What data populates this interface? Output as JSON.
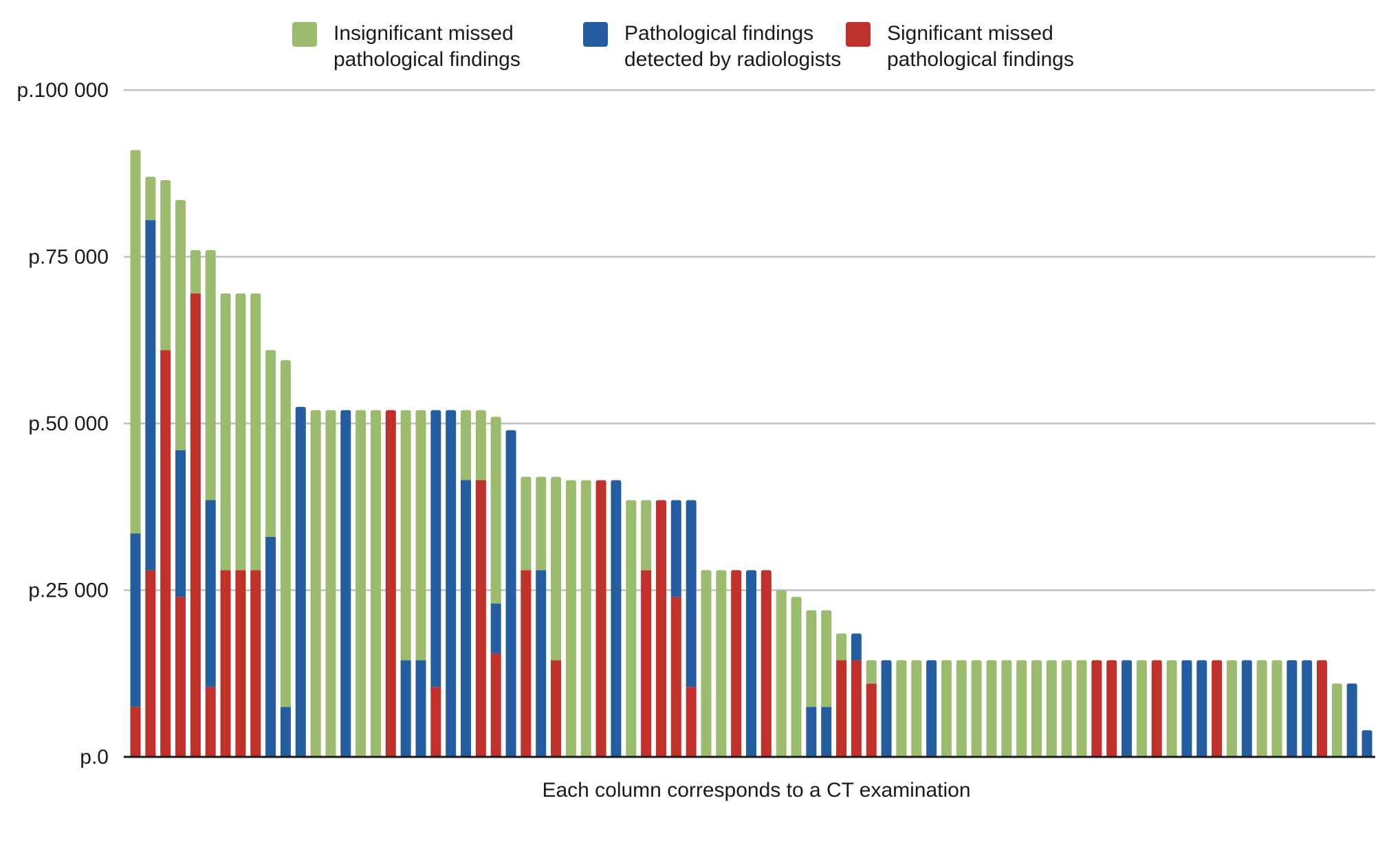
{
  "chart_data": {
    "type": "bar",
    "stacked": true,
    "xlabel": "Each column corresponds to a CT examination",
    "ylabel": "",
    "ylim": [
      0,
      100000
    ],
    "y_ticks": [
      0,
      25000,
      50000,
      75000,
      100000
    ],
    "y_tick_labels": [
      "p.0",
      "p.25 000",
      "p.50 000",
      "p.75 000",
      "p.100 000"
    ],
    "grid": true,
    "legend_position": "top",
    "series": [
      {
        "name": "Insignificant missed pathological findings",
        "name_lines": [
          "Insignificant missed",
          "pathological findings"
        ],
        "color": "#9bbb6f"
      },
      {
        "name": "Pathological findings detected by radiologists",
        "name_lines": [
          "Pathological findings",
          "detected by radiologists"
        ],
        "color": "#255ea0"
      },
      {
        "name": "Significant missed pathological findings",
        "name_lines": [
          "Significant missed",
          "pathological findings"
        ],
        "color": "#c0312b"
      }
    ],
    "color_codes": {
      "g": "#9bbb6f",
      "b": "#255ea0",
      "r": "#c0312b"
    },
    "columns": [
      [
        [
          "r",
          7500
        ],
        [
          "b",
          26000
        ],
        [
          "g",
          57500
        ]
      ],
      [
        [
          "r",
          28000
        ],
        [
          "b",
          52500
        ],
        [
          "g",
          6500
        ]
      ],
      [
        [
          "r",
          61000
        ],
        [
          "g",
          25500
        ]
      ],
      [
        [
          "r",
          24000
        ],
        [
          "b",
          22000
        ],
        [
          "g",
          37500
        ]
      ],
      [
        [
          "r",
          69500
        ],
        [
          "g",
          6500
        ]
      ],
      [
        [
          "r",
          10500
        ],
        [
          "b",
          28000
        ],
        [
          "g",
          37500
        ]
      ],
      [
        [
          "r",
          28000
        ],
        [
          "g",
          41500
        ]
      ],
      [
        [
          "r",
          28000
        ],
        [
          "g",
          41500
        ]
      ],
      [
        [
          "r",
          28000
        ],
        [
          "g",
          41500
        ]
      ],
      [
        [
          "b",
          33000
        ],
        [
          "g",
          28000
        ]
      ],
      [
        [
          "b",
          7500
        ],
        [
          "g",
          52000
        ]
      ],
      [
        [
          "b",
          52500
        ]
      ],
      [
        [
          "g",
          52000
        ]
      ],
      [
        [
          "g",
          52000
        ]
      ],
      [
        [
          "b",
          52000
        ]
      ],
      [
        [
          "g",
          52000
        ]
      ],
      [
        [
          "g",
          52000
        ]
      ],
      [
        [
          "r",
          52000
        ]
      ],
      [
        [
          "b",
          14500
        ],
        [
          "g",
          37500
        ]
      ],
      [
        [
          "b",
          14500
        ],
        [
          "g",
          37500
        ]
      ],
      [
        [
          "r",
          10500
        ],
        [
          "b",
          41500
        ]
      ],
      [
        [
          "b",
          52000
        ]
      ],
      [
        [
          "b",
          41500
        ],
        [
          "g",
          10500
        ]
      ],
      [
        [
          "r",
          41500
        ],
        [
          "g",
          10500
        ]
      ],
      [
        [
          "r",
          15500
        ],
        [
          "b",
          7500
        ],
        [
          "g",
          28000
        ]
      ],
      [
        [
          "b",
          49000
        ]
      ],
      [
        [
          "r",
          28000
        ],
        [
          "g",
          14000
        ]
      ],
      [
        [
          "b",
          28000
        ],
        [
          "g",
          14000
        ]
      ],
      [
        [
          "r",
          14500
        ],
        [
          "g",
          27500
        ]
      ],
      [
        [
          "g",
          41500
        ]
      ],
      [
        [
          "g",
          41500
        ]
      ],
      [
        [
          "r",
          41500
        ]
      ],
      [
        [
          "b",
          41500
        ]
      ],
      [
        [
          "g",
          38500
        ]
      ],
      [
        [
          "r",
          28000
        ],
        [
          "g",
          10500
        ]
      ],
      [
        [
          "r",
          38500
        ]
      ],
      [
        [
          "r",
          24000
        ],
        [
          "b",
          14500
        ]
      ],
      [
        [
          "r",
          10500
        ],
        [
          "b",
          28000
        ]
      ],
      [
        [
          "g",
          28000
        ]
      ],
      [
        [
          "g",
          28000
        ]
      ],
      [
        [
          "r",
          28000
        ]
      ],
      [
        [
          "b",
          28000
        ]
      ],
      [
        [
          "r",
          28000
        ]
      ],
      [
        [
          "g",
          25000
        ]
      ],
      [
        [
          "g",
          24000
        ]
      ],
      [
        [
          "b",
          7500
        ],
        [
          "g",
          14500
        ]
      ],
      [
        [
          "b",
          7500
        ],
        [
          "g",
          14500
        ]
      ],
      [
        [
          "r",
          14500
        ],
        [
          "g",
          4000
        ]
      ],
      [
        [
          "r",
          14500
        ],
        [
          "b",
          4000
        ]
      ],
      [
        [
          "r",
          11000
        ],
        [
          "g",
          3500
        ]
      ],
      [
        [
          "b",
          14500
        ]
      ],
      [
        [
          "g",
          14500
        ]
      ],
      [
        [
          "g",
          14500
        ]
      ],
      [
        [
          "b",
          14500
        ]
      ],
      [
        [
          "g",
          14500
        ]
      ],
      [
        [
          "g",
          14500
        ]
      ],
      [
        [
          "g",
          14500
        ]
      ],
      [
        [
          "g",
          14500
        ]
      ],
      [
        [
          "g",
          14500
        ]
      ],
      [
        [
          "g",
          14500
        ]
      ],
      [
        [
          "g",
          14500
        ]
      ],
      [
        [
          "g",
          14500
        ]
      ],
      [
        [
          "g",
          14500
        ]
      ],
      [
        [
          "g",
          14500
        ]
      ],
      [
        [
          "r",
          14500
        ]
      ],
      [
        [
          "r",
          14500
        ]
      ],
      [
        [
          "b",
          14500
        ]
      ],
      [
        [
          "g",
          14500
        ]
      ],
      [
        [
          "r",
          14500
        ]
      ],
      [
        [
          "g",
          14500
        ]
      ],
      [
        [
          "b",
          14500
        ]
      ],
      [
        [
          "b",
          14500
        ]
      ],
      [
        [
          "r",
          14500
        ]
      ],
      [
        [
          "g",
          14500
        ]
      ],
      [
        [
          "b",
          14500
        ]
      ],
      [
        [
          "g",
          14500
        ]
      ],
      [
        [
          "g",
          14500
        ]
      ],
      [
        [
          "b",
          14500
        ]
      ],
      [
        [
          "b",
          14500
        ]
      ],
      [
        [
          "r",
          14500
        ]
      ],
      [
        [
          "g",
          11000
        ]
      ],
      [
        [
          "b",
          11000
        ]
      ],
      [
        [
          "b",
          4000
        ]
      ]
    ]
  }
}
